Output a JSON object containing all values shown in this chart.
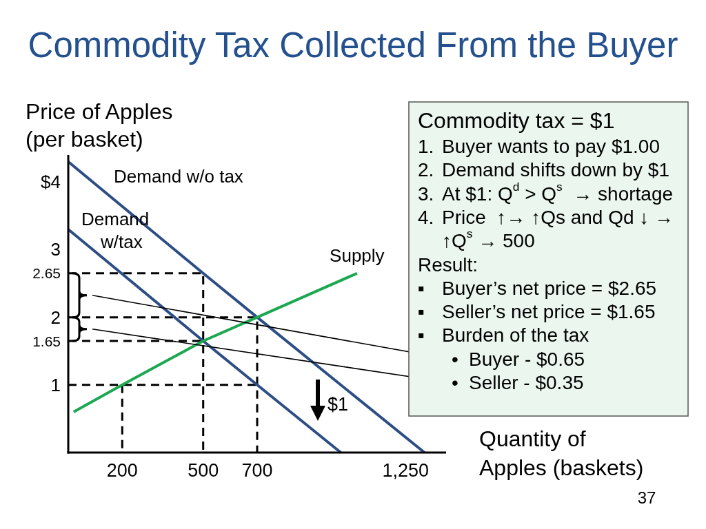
{
  "chart_data": {
    "type": "line",
    "title": "Commodity Tax Collected From the Buyer",
    "ylabel": "Price of Apples (per basket)",
    "xlabel": "Quantity of Apples (baskets)",
    "xlim": [
      0,
      1400
    ],
    "ylim": [
      0,
      4.4
    ],
    "xticks": [
      200,
      500,
      700,
      {
        "value": 1250,
        "label": "1,250"
      }
    ],
    "yticks": [
      {
        "value": 4,
        "label": "$4"
      },
      3,
      2.65,
      2,
      1.65,
      1
    ],
    "line_style": "solid",
    "series": [
      {
        "color": "#000000",
        "line_style": "dashed",
        "x": [
          0,
          500,
          500
        ],
        "values": [
          2.65,
          2.65,
          0
        ]
      },
      {
        "color": "#000000",
        "line_style": "dashed",
        "x": [
          0,
          700,
          700
        ],
        "values": [
          2,
          2,
          0
        ]
      },
      {
        "color": "#000000",
        "line_style": "dashed",
        "x": [
          0,
          500
        ],
        "values": [
          1.65,
          1.65
        ]
      },
      {
        "color": "#000000",
        "line_style": "dashed",
        "x": [
          0,
          700
        ],
        "values": [
          1,
          1
        ]
      },
      {
        "color": "#000000",
        "line_style": "dashed",
        "x": [
          200,
          200
        ],
        "values": [
          1,
          0
        ]
      },
      {
        "name": "Demand w/o tax",
        "color": "#2d4e85",
        "x": [
          0,
          500,
          700,
          1320
        ],
        "values": [
          4.3,
          2.65,
          2,
          0
        ]
      },
      {
        "name": "Demand w/tax",
        "color": "#2d4e85",
        "x": [
          0,
          500,
          700,
          1010
        ],
        "values": [
          3.3,
          1.65,
          1,
          0
        ]
      },
      {
        "name": "Supply",
        "color": "#1ca751",
        "x": [
          20,
          200,
          500,
          700,
          1070
        ],
        "values": [
          0.6,
          1,
          1.65,
          2,
          2.65
        ]
      }
    ],
    "annotations": [
      "$1",
      "Commodity tax = $1",
      "1.  Buyer wants to pay $1.00",
      "2.  Demand shifts down by $1",
      "3.  At $1: Q$^{d}$ > Q$^{s}$  → shortage",
      "4.  Price  ↑→ ↑Qs and Qd ↓ →",
      "↑Q$^{s}$ → 500",
      "Result:",
      "▪  Buyer’s net price = $2.65",
      "▪  Seller’s net price = $1.65",
      "▪  Burden of the tax",
      "•  Buyer - $0.65",
      "•  Seller - $0.35",
      "37"
    ]
  }
}
